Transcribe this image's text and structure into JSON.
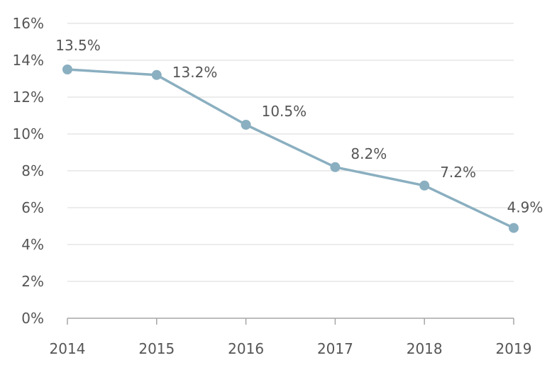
{
  "chart_data": {
    "type": "line",
    "title": "",
    "xlabel": "",
    "ylabel": "",
    "categories": [
      "2014",
      "2015",
      "2016",
      "2017",
      "2018",
      "2019"
    ],
    "values": [
      13.5,
      13.2,
      10.5,
      8.2,
      7.2,
      4.9
    ],
    "data_labels": [
      "13.5%",
      "13.2%",
      "10.5%",
      "8.2%",
      "7.2%",
      "4.9%"
    ],
    "ylim": [
      0,
      16
    ],
    "yticks": [
      0,
      2,
      4,
      6,
      8,
      10,
      12,
      14,
      16
    ],
    "ytick_labels": [
      "0%",
      "2%",
      "4%",
      "6%",
      "8%",
      "10%",
      "12%",
      "14%",
      "16%"
    ],
    "grid": true,
    "legend": "none",
    "colors": {
      "line": "#8aafc0",
      "grid": "#d9d9d9",
      "axis": "#a6a6a6",
      "text": "#555555"
    }
  }
}
